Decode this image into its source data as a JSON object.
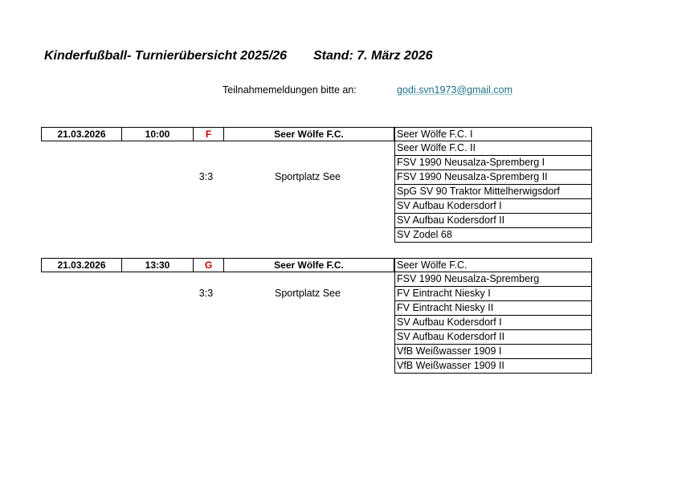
{
  "header": {
    "title": "Kinderfußball- Turnierübersicht 2025/26",
    "stand": "Stand: 7. März 2026",
    "contact_label": "Teilnahmemeldungen bitte an:",
    "contact_email": "godi.svn1973@gmail.com"
  },
  "colors": {
    "group_letter": "#c00000",
    "email_link": "#1f6f8b"
  },
  "tournaments": [
    {
      "date": "21.03.2026",
      "time": "10:00",
      "group": "F",
      "host": "Seer Wölfe F.C.",
      "format": "3:3",
      "venue": "Sportplatz See",
      "teams": [
        "Seer Wölfe F.C. I",
        "Seer Wölfe F.C. II",
        "FSV 1990 Neusalza-Spremberg I",
        "FSV 1990 Neusalza-Spremberg II",
        "SpG SV 90 Traktor Mittelherwigsdorf",
        "SV Aufbau Kodersdorf I",
        "SV Aufbau Kodersdorf II",
        "SV Zodel 68"
      ]
    },
    {
      "date": "21.03.2026",
      "time": "13:30",
      "group": "G",
      "host": "Seer Wölfe F.C.",
      "format": "3:3",
      "venue": "Sportplatz See",
      "teams": [
        "Seer Wölfe F.C.",
        "FSV 1990 Neusalza-Spremberg",
        "FV Eintracht Niesky I",
        "FV Eintracht Niesky II",
        "SV Aufbau Kodersdorf I",
        "SV Aufbau Kodersdorf II",
        "VfB Weißwasser 1909 I",
        "VfB Weißwasser 1909 II"
      ]
    }
  ]
}
